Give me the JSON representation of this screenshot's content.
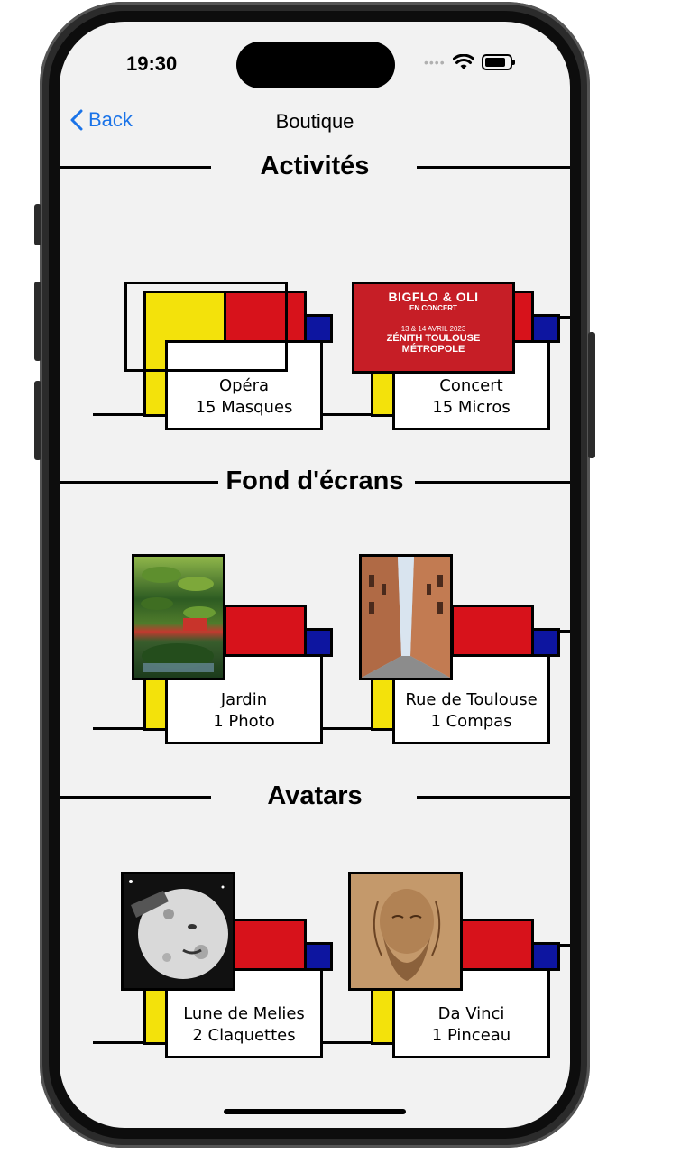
{
  "status": {
    "time": "19:30"
  },
  "nav": {
    "back_label": "Back",
    "title": "Boutique"
  },
  "sections": [
    {
      "title": "Activités",
      "items": [
        {
          "name": "Opéra",
          "cost": "15 Masques"
        },
        {
          "name": "Concert",
          "cost": "15 Micros",
          "poster": {
            "line1": "BIGFLO & OLI",
            "line2": "EN CONCERT",
            "line3": "13 & 14 AVRIL 2023",
            "line4": "ZÉNITH TOULOUSE MÉTROPOLE"
          }
        }
      ]
    },
    {
      "title": "Fond d'écrans",
      "items": [
        {
          "name": "Jardin",
          "cost": "1 Photo"
        },
        {
          "name": "Rue de Toulouse",
          "cost": "1 Compas"
        }
      ]
    },
    {
      "title": "Avatars",
      "items": [
        {
          "name": "Lune de Melies",
          "cost": "2 Claquettes"
        },
        {
          "name": "Da Vinci",
          "cost": "1 Pinceau"
        }
      ]
    }
  ],
  "colors": {
    "yellow": "#f3e20b",
    "red": "#d7121b",
    "blue": "#0d15a0",
    "link": "#1a73e8"
  }
}
